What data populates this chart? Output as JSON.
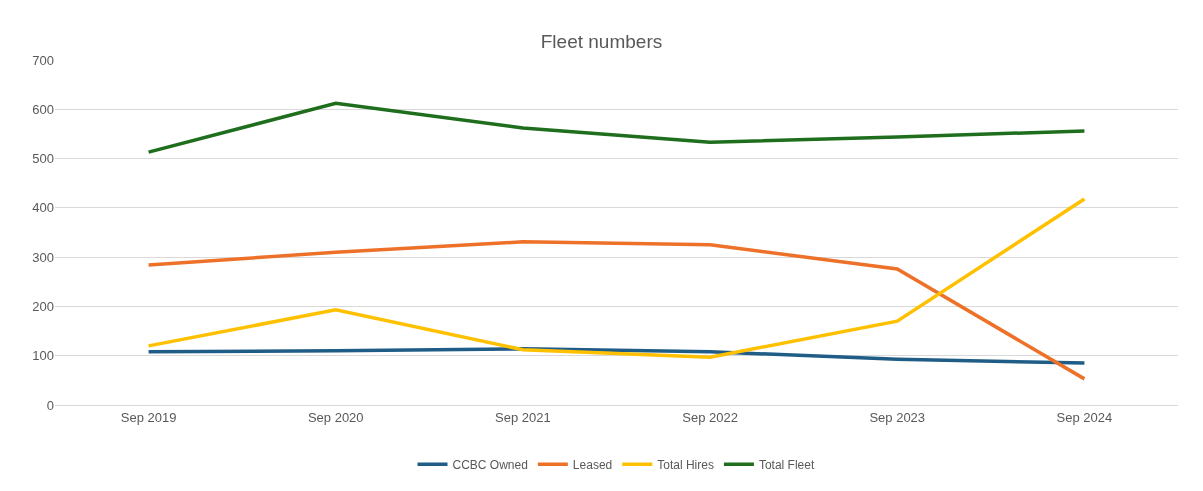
{
  "chart_data": {
    "type": "line",
    "title": "Fleet numbers",
    "categories": [
      "Sep 2019",
      "Sep 2020",
      "Sep 2021",
      "Sep 2022",
      "Sep 2023",
      "Sep 2024"
    ],
    "series": [
      {
        "name": "CCBC Owned",
        "color": "#1f5c86",
        "values": [
          108,
          110,
          114,
          108,
          93,
          85
        ]
      },
      {
        "name": "Leased",
        "color": "#ed7128",
        "values": [
          284,
          310,
          331,
          325,
          276,
          53
        ]
      },
      {
        "name": "Total Hires",
        "color": "#ffc000",
        "values": [
          120,
          193,
          112,
          97,
          170,
          418
        ]
      },
      {
        "name": "Total Fleet",
        "color": "#1e6e1e",
        "values": [
          513,
          612,
          562,
          533,
          544,
          556
        ]
      }
    ],
    "ylim": [
      0,
      700
    ],
    "yticks": [
      0,
      100,
      200,
      300,
      400,
      500,
      600,
      700
    ],
    "grid": "y",
    "legend": "bottom",
    "marker": "none",
    "line_style": "solid"
  }
}
